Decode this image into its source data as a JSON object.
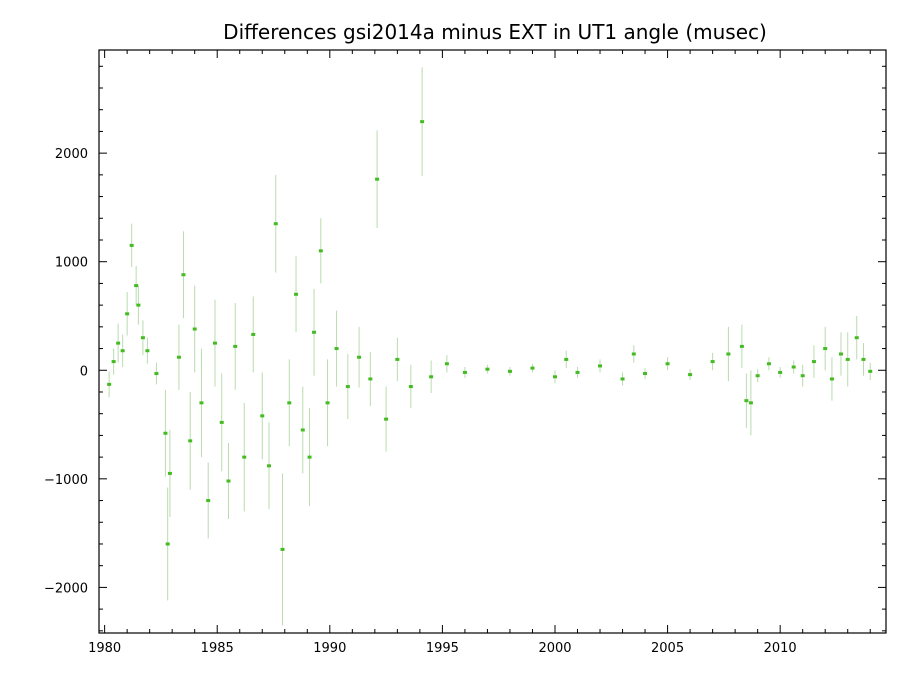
{
  "chart_data": {
    "type": "scatter",
    "title": "Differences gsi2014a minus EXT in UT1 angle   (musec)",
    "xlabel": "",
    "ylabel": "",
    "xlim": [
      1979.75,
      2014.7
    ],
    "ylim": [
      -2420,
      2950
    ],
    "x_ticks": [
      1980,
      1985,
      1990,
      1995,
      2000,
      2005,
      2010
    ],
    "y_ticks": [
      -2000,
      -1000,
      0,
      1000,
      2000
    ],
    "x_tick_labels": [
      "1980",
      "1985",
      "1990",
      "1995",
      "2000",
      "2005",
      "2010"
    ],
    "y_tick_labels": [
      "−2000",
      "−1000",
      "0",
      "1000",
      "2000"
    ],
    "grid": false,
    "legend": "none",
    "colors": {
      "points": "#44bb22",
      "errorbars": "#b9dcae",
      "axes": "#000000"
    },
    "series": [
      {
        "values": [
          {
            "x": 1980.2,
            "y": -130,
            "err": 120
          },
          {
            "x": 1980.4,
            "y": 80,
            "err": 120
          },
          {
            "x": 1980.6,
            "y": 250,
            "err": 180
          },
          {
            "x": 1980.8,
            "y": 180,
            "err": 150
          },
          {
            "x": 1981.0,
            "y": 520,
            "err": 200
          },
          {
            "x": 1981.2,
            "y": 1150,
            "err": 200
          },
          {
            "x": 1981.4,
            "y": 780,
            "err": 180
          },
          {
            "x": 1981.5,
            "y": 600,
            "err": 180
          },
          {
            "x": 1981.7,
            "y": 300,
            "err": 160
          },
          {
            "x": 1981.9,
            "y": 180,
            "err": 120
          },
          {
            "x": 1982.3,
            "y": -30,
            "err": 100
          },
          {
            "x": 1982.7,
            "y": -580,
            "err": 400
          },
          {
            "x": 1982.8,
            "y": -1600,
            "err": 520
          },
          {
            "x": 1982.9,
            "y": -950,
            "err": 400
          },
          {
            "x": 1983.3,
            "y": 120,
            "err": 300
          },
          {
            "x": 1983.5,
            "y": 880,
            "err": 400
          },
          {
            "x": 1983.8,
            "y": -650,
            "err": 450
          },
          {
            "x": 1984.0,
            "y": 380,
            "err": 400
          },
          {
            "x": 1984.3,
            "y": -300,
            "err": 500
          },
          {
            "x": 1984.6,
            "y": -1200,
            "err": 350
          },
          {
            "x": 1984.9,
            "y": 250,
            "err": 400
          },
          {
            "x": 1985.2,
            "y": -480,
            "err": 450
          },
          {
            "x": 1985.5,
            "y": -1020,
            "err": 350
          },
          {
            "x": 1985.8,
            "y": 220,
            "err": 400
          },
          {
            "x": 1986.2,
            "y": -800,
            "err": 500
          },
          {
            "x": 1986.6,
            "y": 330,
            "err": 350
          },
          {
            "x": 1987.0,
            "y": -420,
            "err": 400
          },
          {
            "x": 1987.3,
            "y": -880,
            "err": 400
          },
          {
            "x": 1987.6,
            "y": 1350,
            "err": 450
          },
          {
            "x": 1987.9,
            "y": -1650,
            "err": 700
          },
          {
            "x": 1988.2,
            "y": -300,
            "err": 400
          },
          {
            "x": 1988.5,
            "y": 700,
            "err": 350
          },
          {
            "x": 1988.8,
            "y": -550,
            "err": 400
          },
          {
            "x": 1989.1,
            "y": -800,
            "err": 450
          },
          {
            "x": 1989.3,
            "y": 350,
            "err": 400
          },
          {
            "x": 1989.6,
            "y": 1100,
            "err": 300
          },
          {
            "x": 1989.9,
            "y": -300,
            "err": 400
          },
          {
            "x": 1990.3,
            "y": 200,
            "err": 350
          },
          {
            "x": 1990.8,
            "y": -150,
            "err": 300
          },
          {
            "x": 1991.3,
            "y": 120,
            "err": 280
          },
          {
            "x": 1991.8,
            "y": -80,
            "err": 250
          },
          {
            "x": 1992.1,
            "y": 1760,
            "err": 450
          },
          {
            "x": 1992.5,
            "y": -450,
            "err": 300
          },
          {
            "x": 1993.0,
            "y": 100,
            "err": 200
          },
          {
            "x": 1993.6,
            "y": -150,
            "err": 200
          },
          {
            "x": 1994.1,
            "y": 2290,
            "err": 500
          },
          {
            "x": 1994.5,
            "y": -60,
            "err": 150
          },
          {
            "x": 1995.2,
            "y": 60,
            "err": 80
          },
          {
            "x": 1996.0,
            "y": -20,
            "err": 50
          },
          {
            "x": 1997.0,
            "y": 10,
            "err": 40
          },
          {
            "x": 1998.0,
            "y": -10,
            "err": 40
          },
          {
            "x": 1999.0,
            "y": 20,
            "err": 40
          },
          {
            "x": 2000.0,
            "y": -60,
            "err": 60
          },
          {
            "x": 2000.5,
            "y": 100,
            "err": 80
          },
          {
            "x": 2001.0,
            "y": -20,
            "err": 50
          },
          {
            "x": 2002.0,
            "y": 40,
            "err": 60
          },
          {
            "x": 2003.0,
            "y": -80,
            "err": 60
          },
          {
            "x": 2003.5,
            "y": 150,
            "err": 80
          },
          {
            "x": 2004.0,
            "y": -30,
            "err": 50
          },
          {
            "x": 2005.0,
            "y": 60,
            "err": 60
          },
          {
            "x": 2006.0,
            "y": -40,
            "err": 50
          },
          {
            "x": 2007.0,
            "y": 80,
            "err": 80
          },
          {
            "x": 2007.7,
            "y": 150,
            "err": 250
          },
          {
            "x": 2008.3,
            "y": 220,
            "err": 200
          },
          {
            "x": 2008.5,
            "y": -280,
            "err": 250
          },
          {
            "x": 2008.7,
            "y": -300,
            "err": 300
          },
          {
            "x": 2009.0,
            "y": -50,
            "err": 60
          },
          {
            "x": 2009.5,
            "y": 60,
            "err": 60
          },
          {
            "x": 2010.0,
            "y": -20,
            "err": 50
          },
          {
            "x": 2010.6,
            "y": 30,
            "err": 60
          },
          {
            "x": 2011.0,
            "y": -50,
            "err": 100
          },
          {
            "x": 2011.5,
            "y": 80,
            "err": 150
          },
          {
            "x": 2012.0,
            "y": 200,
            "err": 200
          },
          {
            "x": 2012.3,
            "y": -80,
            "err": 200
          },
          {
            "x": 2012.7,
            "y": 150,
            "err": 200
          },
          {
            "x": 2013.0,
            "y": 100,
            "err": 250
          },
          {
            "x": 2013.4,
            "y": 300,
            "err": 200
          },
          {
            "x": 2013.7,
            "y": 100,
            "err": 150
          },
          {
            "x": 2014.0,
            "y": -10,
            "err": 80
          }
        ]
      }
    ]
  }
}
